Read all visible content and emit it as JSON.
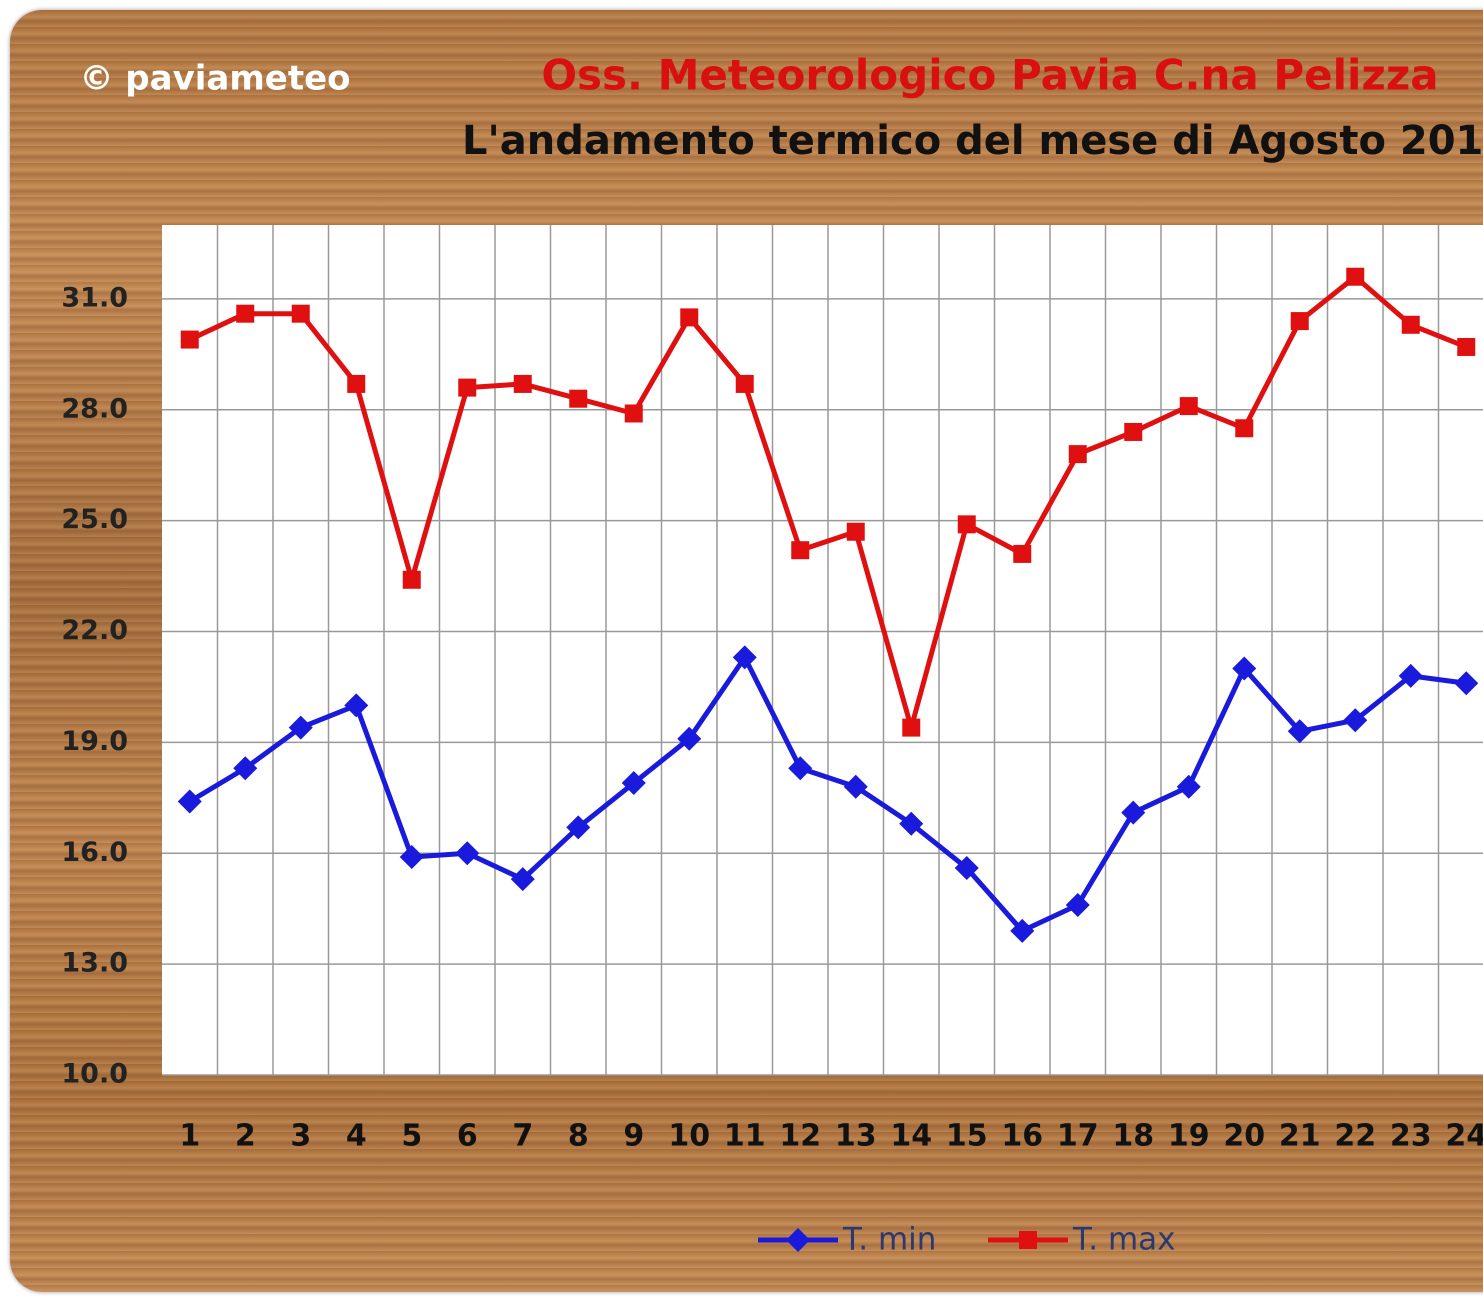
{
  "chart_data": {
    "type": "line",
    "watermark": "© paviameteo",
    "title": "Oss. Meteorologico Pavia C.na Pelizza",
    "subtitle": "L'andamento termico del mese di Agosto 201",
    "categories": [
      "1",
      "2",
      "3",
      "4",
      "5",
      "6",
      "7",
      "8",
      "9",
      "10",
      "11",
      "12",
      "13",
      "14",
      "15",
      "16",
      "17",
      "18",
      "19",
      "20",
      "21",
      "22",
      "23",
      "24"
    ],
    "series": [
      {
        "name": "T. min",
        "color": "#1a1adc",
        "marker": "diamond",
        "values": [
          17.4,
          18.3,
          19.4,
          20.0,
          15.9,
          16.0,
          15.3,
          16.7,
          17.9,
          19.1,
          21.3,
          18.3,
          17.8,
          16.8,
          15.6,
          13.9,
          14.6,
          17.1,
          17.8,
          21.0,
          19.3,
          19.6,
          20.8,
          20.6
        ]
      },
      {
        "name": "T. max",
        "color": "#e01010",
        "marker": "square",
        "values": [
          29.9,
          30.6,
          30.6,
          28.7,
          23.4,
          28.6,
          28.7,
          28.3,
          27.9,
          30.5,
          28.7,
          24.2,
          24.7,
          19.4,
          24.9,
          24.1,
          26.8,
          27.4,
          28.1,
          27.5,
          30.4,
          31.6,
          30.3,
          29.7
        ]
      }
    ],
    "ylim": [
      10,
      33
    ],
    "yticks": [
      {
        "value": 10,
        "label": "10.0"
      },
      {
        "value": 13,
        "label": "13.0"
      },
      {
        "value": 16,
        "label": "16.0"
      },
      {
        "value": 19,
        "label": "19.0"
      },
      {
        "value": 22,
        "label": "22.0"
      },
      {
        "value": 25,
        "label": "25.0"
      },
      {
        "value": 28,
        "label": "28.0"
      },
      {
        "value": 31,
        "label": "31.0"
      }
    ],
    "grid": true,
    "legend": "bottom"
  }
}
